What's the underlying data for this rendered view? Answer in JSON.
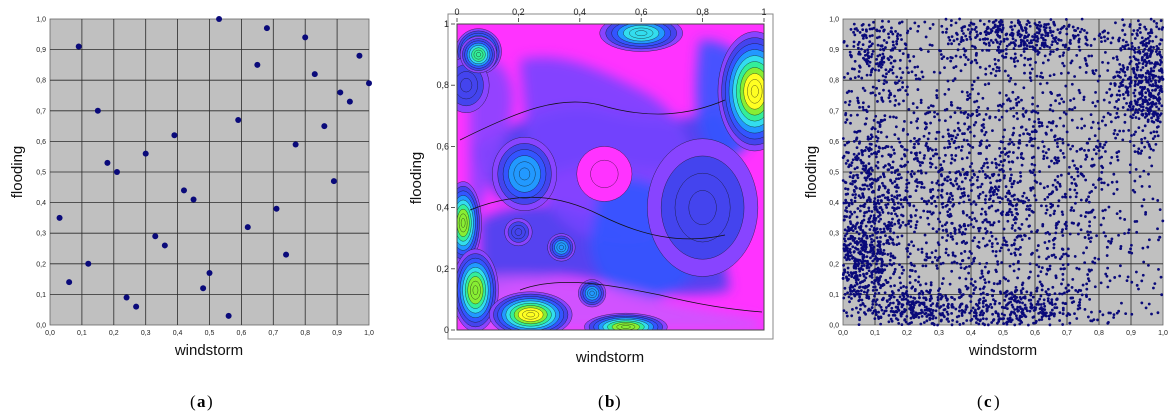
{
  "chart_data": [
    {
      "type": "scatter",
      "caption": "a",
      "xlabel": "windstorm",
      "ylabel": "flooding",
      "xlim": [
        0,
        1
      ],
      "ylim": [
        0,
        1
      ],
      "grid": true,
      "background": "#c0c0c0",
      "point_color": "#0a0a7a",
      "xticks": [
        "0,0",
        "0,1",
        "0,2",
        "0,3",
        "0,4",
        "0,5",
        "0,6",
        "0,7",
        "0,8",
        "0,9",
        "1,0"
      ],
      "yticks": [
        "0,0",
        "0,1",
        "0,2",
        "0,3",
        "0,4",
        "0,5",
        "0,6",
        "0,7",
        "0,8",
        "0,9",
        "1,0"
      ],
      "points": [
        [
          0.03,
          0.35
        ],
        [
          0.06,
          0.14
        ],
        [
          0.09,
          0.91
        ],
        [
          0.12,
          0.2
        ],
        [
          0.15,
          0.7
        ],
        [
          0.18,
          0.53
        ],
        [
          0.21,
          0.5
        ],
        [
          0.24,
          0.09
        ],
        [
          0.27,
          0.06
        ],
        [
          0.3,
          0.56
        ],
        [
          0.33,
          0.29
        ],
        [
          0.36,
          0.26
        ],
        [
          0.39,
          0.62
        ],
        [
          0.42,
          0.44
        ],
        [
          0.45,
          0.41
        ],
        [
          0.48,
          0.12
        ],
        [
          0.5,
          0.17
        ],
        [
          0.53,
          1.0
        ],
        [
          0.56,
          0.03
        ],
        [
          0.59,
          0.67
        ],
        [
          0.62,
          0.32
        ],
        [
          0.65,
          0.85
        ],
        [
          0.68,
          0.97
        ],
        [
          0.71,
          0.38
        ],
        [
          0.74,
          0.23
        ],
        [
          0.77,
          0.59
        ],
        [
          0.8,
          0.94
        ],
        [
          0.83,
          0.82
        ],
        [
          0.86,
          0.65
        ],
        [
          0.89,
          0.47
        ],
        [
          0.91,
          0.76
        ],
        [
          0.94,
          0.73
        ],
        [
          0.97,
          0.88
        ],
        [
          1.0,
          0.79
        ]
      ]
    },
    {
      "type": "heatmap",
      "caption": "b",
      "xlabel": "windstorm",
      "ylabel": "flooding",
      "xlim": [
        0,
        1
      ],
      "ylim": [
        0,
        1
      ],
      "xticks": [
        "0",
        "0,2",
        "0,4",
        "0,6",
        "0,8",
        "1"
      ],
      "yticks": [
        "0",
        "0,2",
        "0,4",
        "0,6",
        "0,8",
        "1"
      ],
      "colormap": [
        "#ff33ff",
        "#cc55ff",
        "#8844ff",
        "#4444ee",
        "#3355ff",
        "#2299ff",
        "#33ddee",
        "#33ee99",
        "#88ee33",
        "#ffff22"
      ],
      "hotspots": [
        {
          "x": 0.07,
          "y": 0.91,
          "w": 0.05,
          "h": 0.05,
          "level": 0.95
        },
        {
          "x": 0.03,
          "y": 0.8,
          "w": 0.05,
          "h": 0.06,
          "level": 0.3
        },
        {
          "x": 0.07,
          "y": 0.9,
          "w": 0.04,
          "h": 0.04,
          "level": 0.75
        },
        {
          "x": 0.6,
          "y": 0.97,
          "w": 0.09,
          "h": 0.04,
          "level": 0.7
        },
        {
          "x": 0.97,
          "y": 0.78,
          "w": 0.08,
          "h": 0.13,
          "level": 0.95
        },
        {
          "x": 0.02,
          "y": 0.35,
          "w": 0.04,
          "h": 0.09,
          "level": 0.85
        },
        {
          "x": 0.06,
          "y": 0.13,
          "w": 0.05,
          "h": 0.09,
          "level": 0.9
        },
        {
          "x": 0.24,
          "y": 0.05,
          "w": 0.09,
          "h": 0.05,
          "level": 0.95
        },
        {
          "x": 0.55,
          "y": 0.01,
          "w": 0.09,
          "h": 0.03,
          "level": 0.9
        },
        {
          "x": 0.22,
          "y": 0.51,
          "w": 0.07,
          "h": 0.08,
          "level": 0.55
        },
        {
          "x": 0.2,
          "y": 0.32,
          "w": 0.03,
          "h": 0.03,
          "level": 0.35
        },
        {
          "x": 0.34,
          "y": 0.27,
          "w": 0.03,
          "h": 0.03,
          "level": 0.55
        },
        {
          "x": 0.48,
          "y": 0.51,
          "w": 0.06,
          "h": 0.06,
          "level": 0.05
        },
        {
          "x": 0.44,
          "y": 0.12,
          "w": 0.03,
          "h": 0.03,
          "level": 0.55
        },
        {
          "x": 0.8,
          "y": 0.4,
          "w": 0.12,
          "h": 0.15,
          "level": 0.3
        }
      ]
    },
    {
      "type": "scatter",
      "caption": "c",
      "xlabel": "windstorm",
      "ylabel": "flooding",
      "xlim": [
        0,
        1
      ],
      "ylim": [
        0,
        1
      ],
      "grid": true,
      "background": "#c0c0c0",
      "point_color": "#0a0a7a",
      "xticks": [
        "0,0",
        "0,1",
        "0,2",
        "0,3",
        "0,4",
        "0,5",
        "0,6",
        "0,7",
        "0,8",
        "0,9",
        "1,0"
      ],
      "yticks": [
        "0,0",
        "0,1",
        "0,2",
        "0,3",
        "0,4",
        "0,5",
        "0,6",
        "0,7",
        "0,8",
        "0,9",
        "1,0"
      ],
      "clusters": [
        {
          "cx": 0.05,
          "cy": 0.2,
          "sx": 0.06,
          "sy": 0.08,
          "n": 450
        },
        {
          "cx": 0.08,
          "cy": 0.45,
          "sx": 0.07,
          "sy": 0.12,
          "n": 320
        },
        {
          "cx": 0.1,
          "cy": 0.88,
          "sx": 0.06,
          "sy": 0.08,
          "n": 200
        },
        {
          "cx": 0.25,
          "cy": 0.05,
          "sx": 0.1,
          "sy": 0.04,
          "n": 320
        },
        {
          "cx": 0.55,
          "cy": 0.05,
          "sx": 0.1,
          "sy": 0.04,
          "n": 280
        },
        {
          "cx": 0.55,
          "cy": 0.95,
          "sx": 0.12,
          "sy": 0.05,
          "n": 380
        },
        {
          "cx": 0.95,
          "cy": 0.8,
          "sx": 0.05,
          "sy": 0.1,
          "n": 500
        },
        {
          "cx": 0.3,
          "cy": 0.4,
          "sx": 0.15,
          "sy": 0.15,
          "n": 350
        },
        {
          "cx": 0.6,
          "cy": 0.35,
          "sx": 0.15,
          "sy": 0.15,
          "n": 280
        },
        {
          "cx": 0.5,
          "cy": 0.6,
          "sx": 0.25,
          "sy": 0.2,
          "n": 450
        }
      ],
      "uniform_n": 900
    }
  ]
}
